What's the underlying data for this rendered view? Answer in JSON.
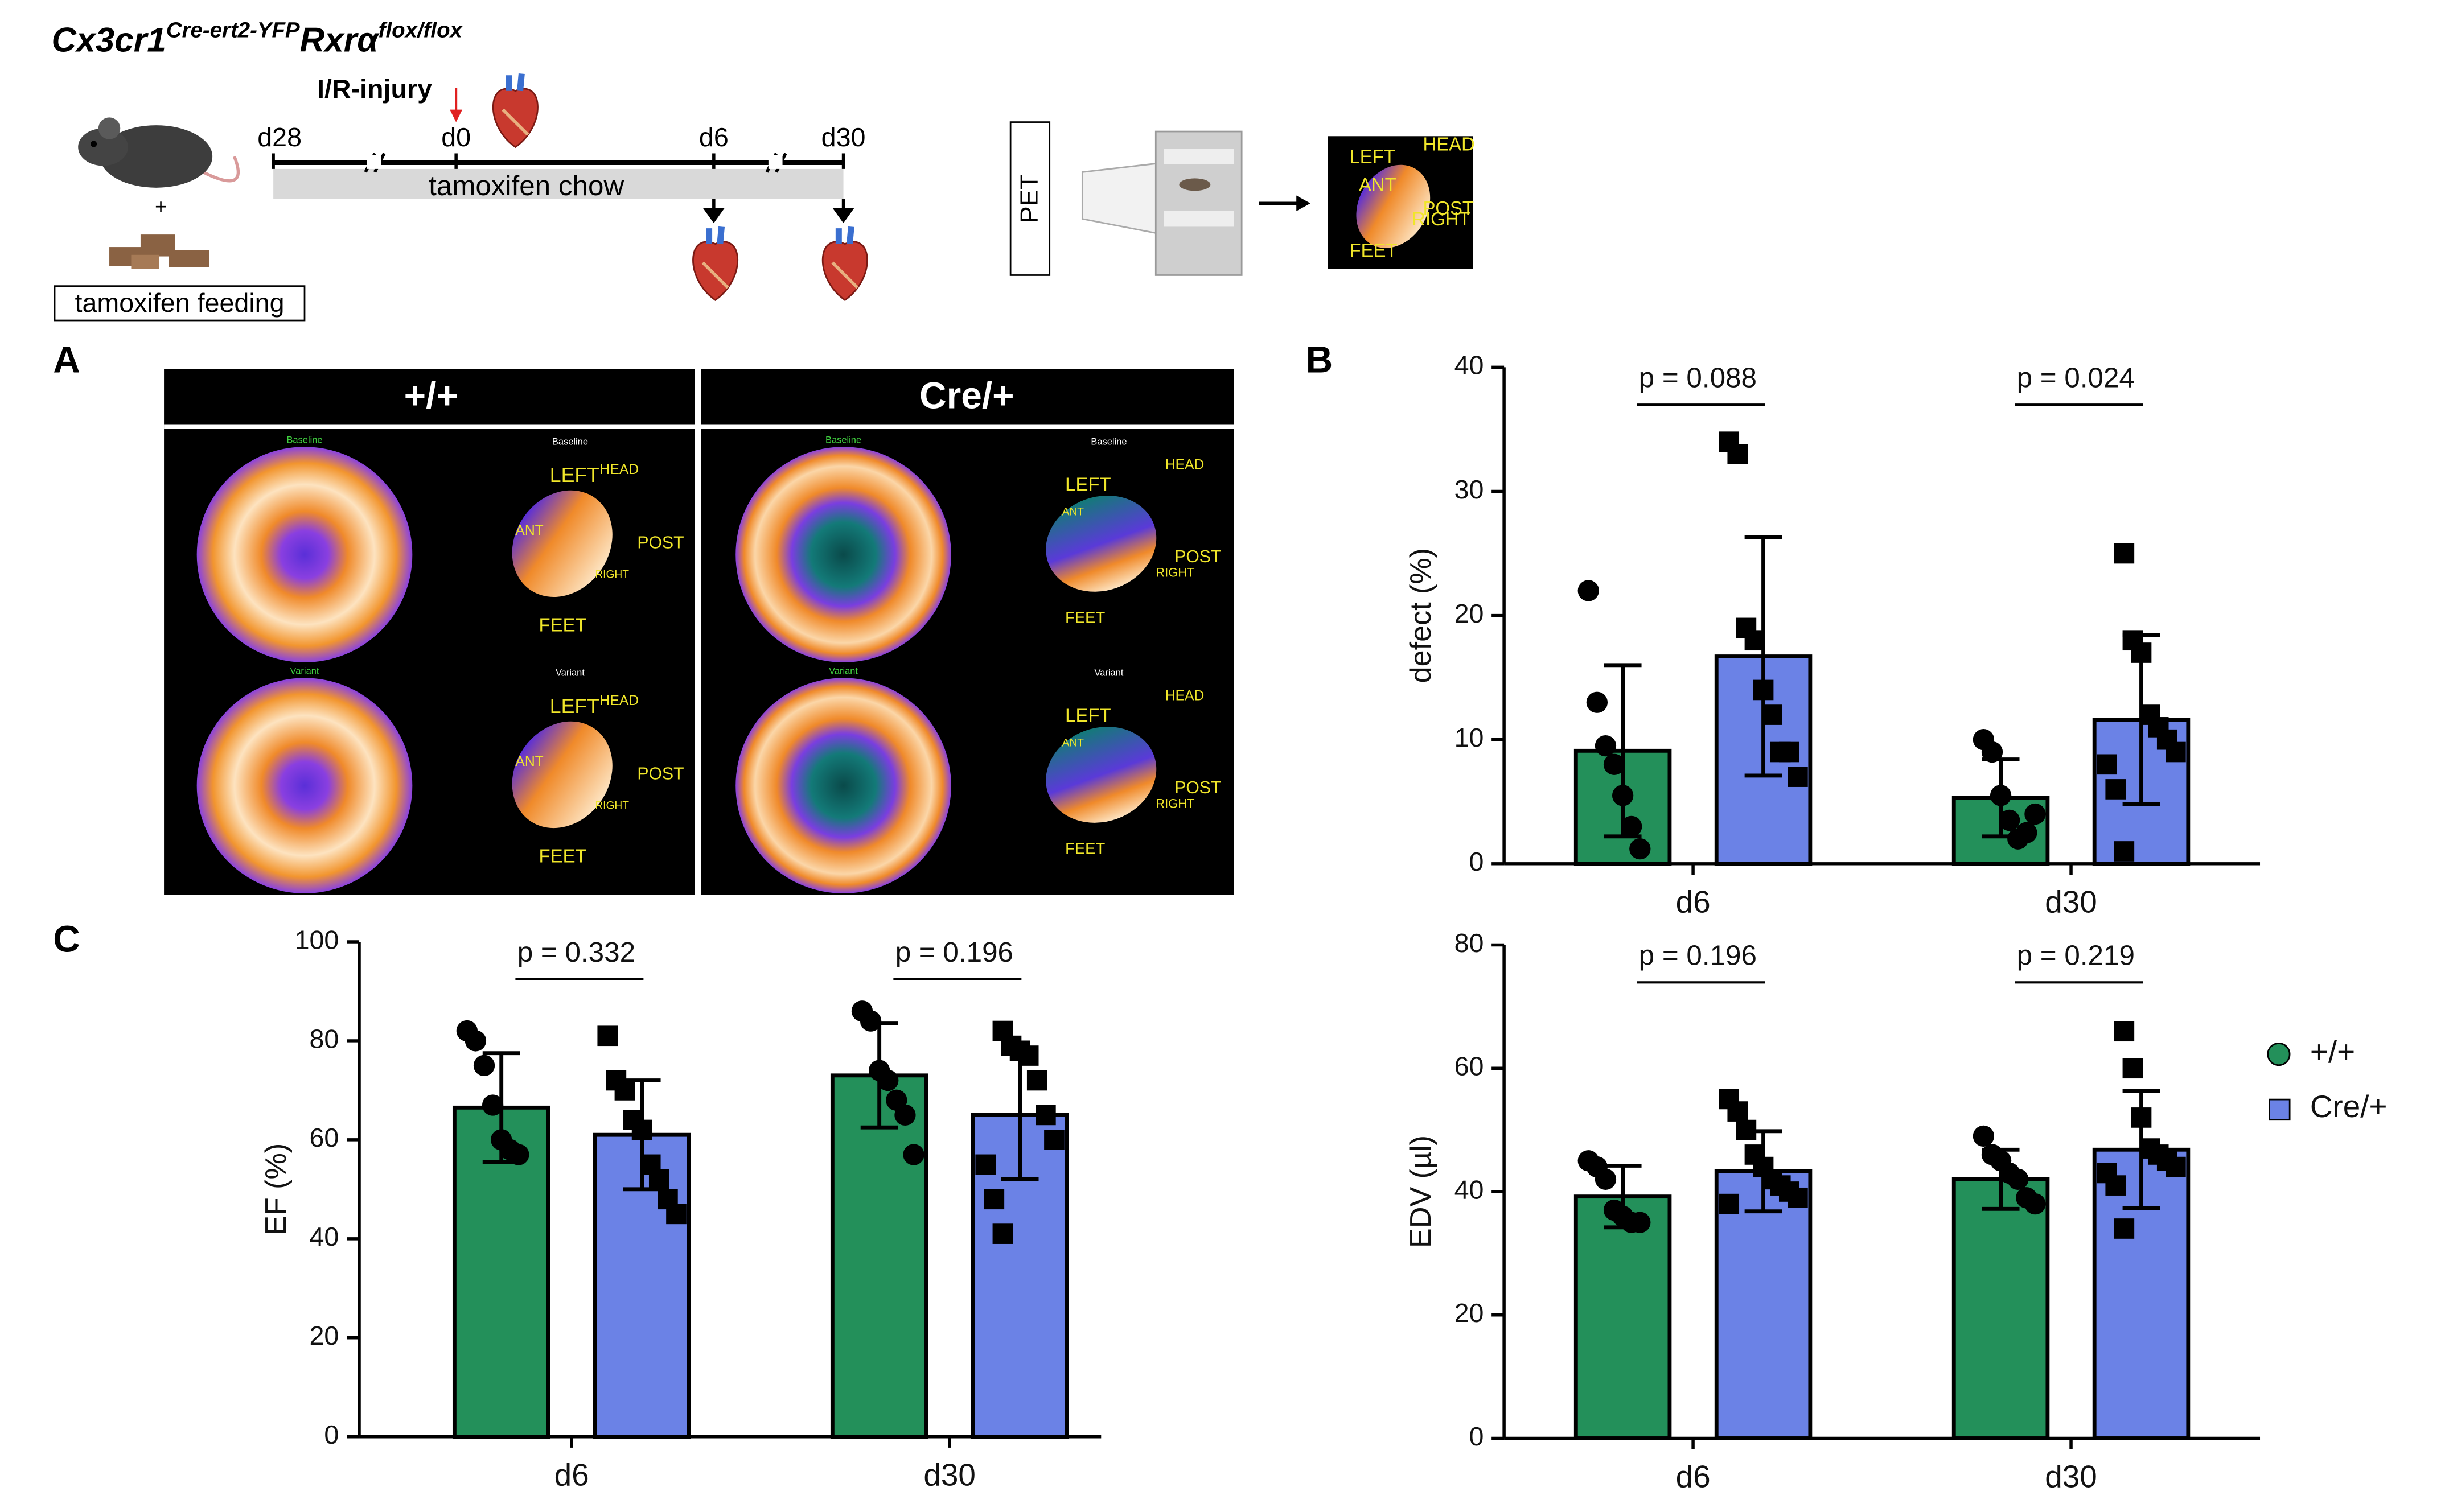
{
  "schematic": {
    "title": {
      "gene": "Cx3cr1",
      "gene_sup": "Cre-ert2-YFP",
      "gene2": "Rxrα",
      "gene2_sup": "flox/flox"
    },
    "timepoints": [
      "d28",
      "d0",
      "d6",
      "d30"
    ],
    "injury": "I/R-injury",
    "chow": "tamoxifen chow",
    "plus": "+",
    "feeding": "tamoxifen feeding",
    "pet": "PET",
    "pet_image_labels": [
      "LEFT",
      "HEAD",
      "ANT",
      "POST",
      "RIGHT",
      "FEET"
    ]
  },
  "panel_labels": [
    "A",
    "B",
    "C"
  ],
  "panel_a": {
    "columns": [
      "+/+",
      "Cre/+"
    ],
    "rows": [
      "Baseline",
      "Variant"
    ],
    "orientation": [
      "LEFT",
      "HEAD",
      "ANT",
      "POST",
      "RIGHT",
      "FEET"
    ]
  },
  "chart_data": [
    {
      "type": "bar",
      "ylabel": "defect (%)",
      "categories": [
        "d6",
        "d30"
      ],
      "ylim": [
        0,
        40
      ],
      "yticks": [
        0,
        10,
        20,
        30,
        40
      ],
      "annotations": [
        "p = 0.088",
        "p = 0.024"
      ],
      "series": [
        {
          "color": "#23905a",
          "marker": "circle",
          "values": [
            9.1,
            5.3
          ],
          "errors": [
            6.9,
            3.1
          ],
          "points": [
            [
              22,
              13,
              9.5,
              8,
              5.5,
              3,
              1.2
            ],
            [
              10,
              9,
              5.5,
              3.5,
              2,
              2.5,
              4
            ]
          ]
        },
        {
          "color": "#6b82e6",
          "marker": "square",
          "values": [
            16.7,
            11.6
          ],
          "errors": [
            9.6,
            6.8
          ],
          "points": [
            [
              34,
              33,
              19,
              18,
              14,
              12,
              9,
              9,
              7
            ],
            [
              25,
              18,
              17,
              12,
              11,
              10,
              9,
              8,
              6,
              1
            ]
          ]
        }
      ]
    },
    {
      "type": "bar",
      "ylabel": "EF (%)",
      "categories": [
        "d6",
        "d30"
      ],
      "ylim": [
        0,
        100
      ],
      "yticks": [
        0,
        20,
        40,
        60,
        80,
        100
      ],
      "annotations": [
        "p = 0.332",
        "p = 0.196"
      ],
      "series": [
        {
          "color": "#23905a",
          "marker": "circle",
          "values": [
            66.5,
            73
          ],
          "errors": [
            11,
            10.5
          ],
          "points": [
            [
              82,
              80,
              75,
              67,
              60,
              58,
              57
            ],
            [
              86,
              84,
              74,
              72,
              68,
              65,
              57
            ]
          ]
        },
        {
          "color": "#6b82e6",
          "marker": "square",
          "values": [
            61,
            65
          ],
          "errors": [
            11,
            13
          ],
          "points": [
            [
              81,
              72,
              70,
              64,
              62,
              55,
              52,
              48,
              45
            ],
            [
              82,
              79,
              78,
              77,
              72,
              65,
              60,
              55,
              48,
              41
            ]
          ]
        }
      ]
    },
    {
      "type": "bar",
      "ylabel": "EDV (µl)",
      "categories": [
        "d6",
        "d30"
      ],
      "ylim": [
        0,
        80
      ],
      "yticks": [
        0,
        20,
        40,
        60,
        80
      ],
      "annotations": [
        "p = 0.196",
        "p = 0.219"
      ],
      "legend": "right",
      "series": [
        {
          "name": "+/+",
          "color": "#23905a",
          "marker": "circle",
          "values": [
            39.2,
            42
          ],
          "errors": [
            5,
            4.8
          ],
          "points": [
            [
              45,
              44,
              42,
              37,
              36,
              35,
              35
            ],
            [
              49,
              46,
              45,
              43,
              42,
              39,
              38
            ]
          ]
        },
        {
          "name": "Cre/+",
          "color": "#6b82e6",
          "marker": "square",
          "values": [
            43.3,
            46.8
          ],
          "errors": [
            6.5,
            9.5
          ],
          "points": [
            [
              55,
              53,
              50,
              46,
              44,
              42,
              41,
              40,
              39,
              38
            ],
            [
              66,
              60,
              52,
              47,
              46,
              45,
              44,
              43,
              41,
              34
            ]
          ]
        }
      ]
    }
  ]
}
